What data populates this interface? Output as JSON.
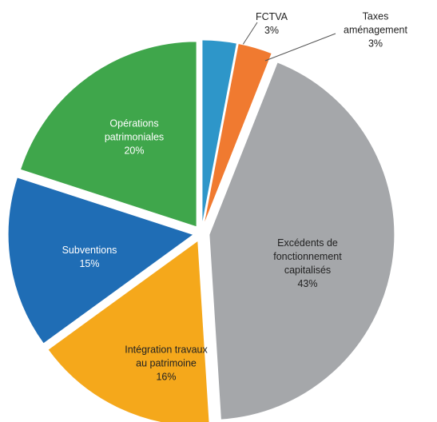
{
  "chart_data": {
    "type": "pie",
    "categories": [
      "FCTVA",
      "Taxes aménagement",
      "Excédents de fonctionnement capitalisés",
      "Intégration travaux au patrimoine",
      "Subventions",
      "Opérations patrimoniales"
    ],
    "values": [
      3,
      3,
      43,
      16,
      15,
      20
    ],
    "value_labels": [
      "3%",
      "3%",
      "43%",
      "16%",
      "15%",
      "20%"
    ],
    "colors": [
      "#2e96c9",
      "#f07a30",
      "#a5a7aa",
      "#f5a81b",
      "#1f6db5",
      "#3fa64b"
    ]
  }
}
